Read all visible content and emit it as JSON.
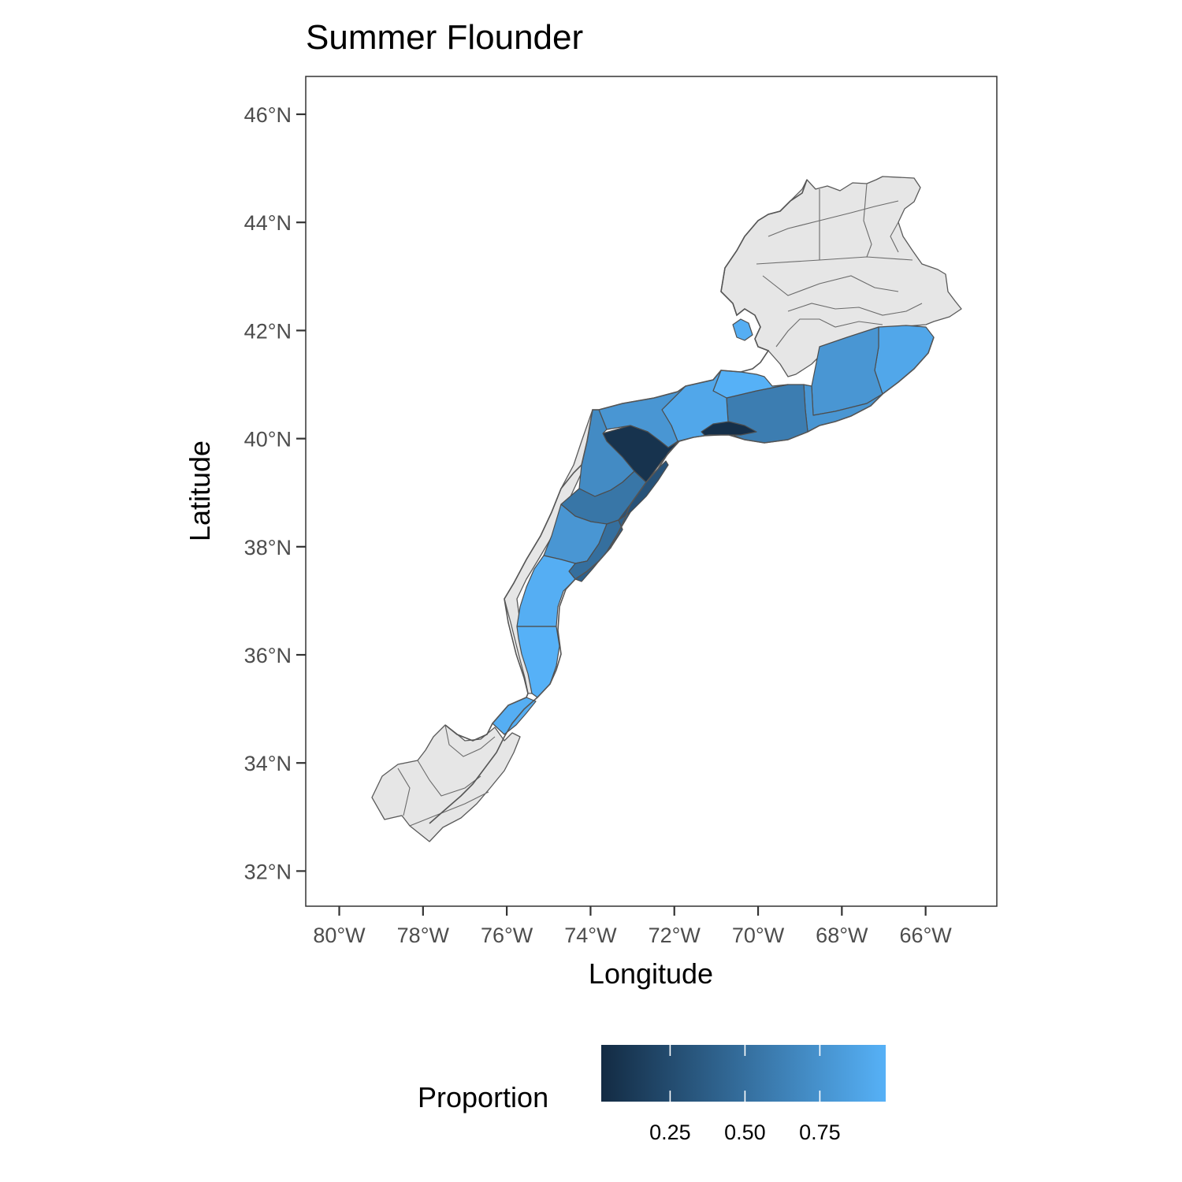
{
  "chart_data": {
    "type": "map",
    "title": "Summer Flounder",
    "xlabel": "Longitude",
    "ylabel": "Latitude",
    "x_ticks": [
      "80°W",
      "78°W",
      "76°W",
      "74°W",
      "72°W",
      "70°W",
      "68°W",
      "66°W"
    ],
    "y_ticks": [
      "32°N",
      "34°N",
      "36°N",
      "38°N",
      "40°N",
      "42°N",
      "44°N",
      "46°N"
    ],
    "xlim": [
      -80.8,
      -64.3
    ],
    "ylim": [
      31.35,
      46.7
    ],
    "legend": {
      "title": "Proportion",
      "position": "bottom",
      "scale": "continuous",
      "low_color": "#132b43",
      "high_color": "#56b1f7",
      "range": [
        0.02,
        0.97
      ],
      "tick_values": [
        0.25,
        0.5,
        0.75
      ],
      "tick_labels": [
        "0.25",
        "0.50",
        "0.75"
      ]
    },
    "no_data_color": "#e6e6e6",
    "regions": [
      {
        "id": "gb-east",
        "proportion": 0.9
      },
      {
        "id": "gb-mid",
        "proportion": 0.78
      },
      {
        "id": "gb-west",
        "proportion": 0.78
      },
      {
        "id": "sne-shelf-east",
        "proportion": 0.6
      },
      {
        "id": "sne-channel",
        "proportion": 0.97
      },
      {
        "id": "cape-cod-bay",
        "proportion": 0.95
      },
      {
        "id": "li-outer",
        "proportion": 0.9
      },
      {
        "id": "li-east",
        "proportion": 0.78
      },
      {
        "id": "hudson-canyon",
        "proportion": 0.08
      },
      {
        "id": "sne-shelf-break",
        "proportion": 0.05
      },
      {
        "id": "nj-inner",
        "proportion": 0.7
      },
      {
        "id": "nj-mid",
        "proportion": 0.55
      },
      {
        "id": "nj-outer",
        "proportion": 0.3
      },
      {
        "id": "delmarva-inner",
        "proportion": 0.78
      },
      {
        "id": "delmarva-outer",
        "proportion": 0.5
      },
      {
        "id": "delmarva-edge",
        "proportion": 0.4
      },
      {
        "id": "virginia",
        "proportion": 0.95
      },
      {
        "id": "north-carolina",
        "proportion": 0.97
      },
      {
        "id": "raleigh-bay",
        "proportion": 0.95
      }
    ]
  }
}
